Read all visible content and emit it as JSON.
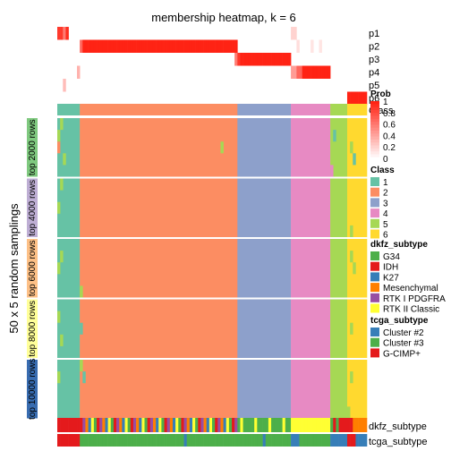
{
  "chart_data": {
    "type": "heatmap",
    "title": "membership heatmap, k = 6",
    "ylabel": "50 x 5 random samplings",
    "n_samples": 110,
    "prob_rows": [
      "p1",
      "p2",
      "p3",
      "p4",
      "p5",
      "p6"
    ],
    "class_colors": {
      "1": "#66C2A5",
      "2": "#FC8D62",
      "3": "#8DA0CB",
      "4": "#E78AC3",
      "5": "#A6D854",
      "6": "#FFD92F"
    },
    "class_blocks": [
      {
        "class": "1",
        "start": 0,
        "end": 8
      },
      {
        "class": "2",
        "start": 8,
        "end": 64
      },
      {
        "class": "3",
        "start": 64,
        "end": 83
      },
      {
        "class": "4",
        "start": 83,
        "end": 97
      },
      {
        "class": "5",
        "start": 97,
        "end": 103
      },
      {
        "class": "6",
        "start": 103,
        "end": 110
      }
    ],
    "row_groups": [
      {
        "label": "top 2000 rows",
        "color": "#7FC97F"
      },
      {
        "label": "top 4000 rows",
        "color": "#BEAED4"
      },
      {
        "label": "top 6000 rows",
        "color": "#FDC086"
      },
      {
        "label": "top 8000 rows",
        "color": "#FFFF99"
      },
      {
        "label": "top 10000 rows",
        "color": "#386CB0"
      }
    ],
    "annotation_rows": [
      "dkfz_subtype",
      "tcga_subtype"
    ],
    "legends": {
      "prob": {
        "title": "Prob",
        "ticks": [
          "1",
          "0.8",
          "0.6",
          "0.4",
          "0.2",
          "0"
        ]
      },
      "class": {
        "title": "Class",
        "items": [
          {
            "label": "1",
            "color": "#66C2A5"
          },
          {
            "label": "2",
            "color": "#FC8D62"
          },
          {
            "label": "3",
            "color": "#8DA0CB"
          },
          {
            "label": "4",
            "color": "#E78AC3"
          },
          {
            "label": "5",
            "color": "#A6D854"
          },
          {
            "label": "6",
            "color": "#FFD92F"
          }
        ]
      },
      "dkfz_subtype": {
        "title": "dkfz_subtype",
        "items": [
          {
            "label": "G34",
            "color": "#4DAF4A"
          },
          {
            "label": "IDH",
            "color": "#E41A1C"
          },
          {
            "label": "K27",
            "color": "#377EB8"
          },
          {
            "label": "Mesenchymal",
            "color": "#FF7F00"
          },
          {
            "label": "RTK I PDGFRA",
            "color": "#984EA3"
          },
          {
            "label": "RTK II Classic",
            "color": "#FFFF33"
          }
        ]
      },
      "tcga_subtype": {
        "title": "tcga_subtype",
        "items": [
          {
            "label": "Cluster #2",
            "color": "#377EB8"
          },
          {
            "label": "Cluster #3",
            "color": "#4DAF4A"
          },
          {
            "label": "G-CIMP+",
            "color": "#E41A1C"
          }
        ]
      }
    }
  }
}
